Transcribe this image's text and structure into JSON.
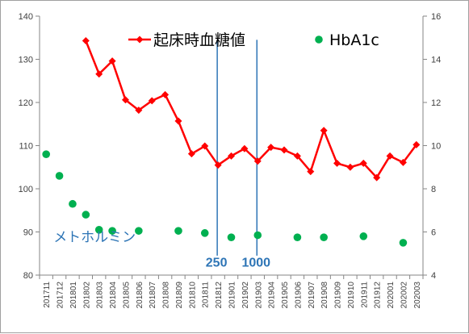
{
  "chart_data": {
    "type": "line",
    "categories": [
      "201711",
      "201712",
      "201801",
      "201802",
      "201803",
      "201804",
      "201805",
      "201806",
      "201807",
      "201808",
      "201809",
      "201810",
      "201811",
      "201812",
      "201901",
      "201902",
      "201903",
      "201904",
      "201905",
      "201906",
      "201907",
      "201908",
      "201909",
      "201910",
      "201911",
      "201912",
      "202001",
      "202002",
      "202003"
    ],
    "y_left": {
      "min": 80,
      "max": 140,
      "step": 10
    },
    "y_right": {
      "min": 4,
      "max": 16,
      "step": 2
    },
    "grid": false,
    "legend_position": "top",
    "series": [
      {
        "name": "起床時血糖値",
        "axis": "left",
        "kind": "line-marker",
        "color": "#ff0000",
        "values": [
          null,
          null,
          null,
          134.3,
          126.6,
          129.6,
          120.6,
          118.2,
          120.4,
          121.8,
          115.7,
          108.1,
          109.9,
          105.5,
          107.6,
          109.3,
          106.4,
          109.6,
          109.0,
          107.6,
          104.0,
          113.5,
          105.9,
          105.0,
          105.9,
          102.6,
          107.6,
          106.1,
          110.2
        ]
      },
      {
        "name": "HbA1c",
        "axis": "right",
        "kind": "scatter",
        "color": "#00b050",
        "values": [
          9.6,
          8.6,
          7.3,
          6.8,
          6.1,
          6.05,
          null,
          6.05,
          null,
          null,
          6.05,
          null,
          5.95,
          null,
          5.75,
          null,
          5.85,
          null,
          null,
          5.75,
          null,
          5.75,
          null,
          null,
          5.8,
          null,
          null,
          5.5,
          null
        ]
      }
    ],
    "annotations": [
      {
        "text": "メトホルミン",
        "at_category": "201711",
        "y_right": 5.55
      },
      {
        "text": "250",
        "at_category": "201812",
        "y_right": 4.4,
        "bold": true
      },
      {
        "text": "1000",
        "at_category": "201903",
        "y_right": 4.4,
        "bold": true
      }
    ],
    "vertical_markers": [
      {
        "category": "201812",
        "color": "#2e75b6"
      },
      {
        "category": "201903",
        "color": "#2e75b6"
      }
    ]
  }
}
